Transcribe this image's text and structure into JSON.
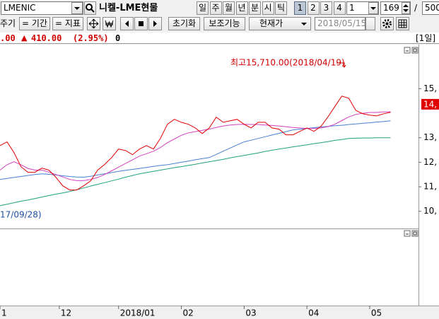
{
  "toolbar": {
    "symbol": "LMENIC",
    "name": "니켈-LME현물",
    "periods": [
      "일",
      "주",
      "월",
      "년",
      "분",
      "시",
      "틱"
    ],
    "slots": [
      "1",
      "2",
      "3",
      "4"
    ],
    "interval": "1",
    "count": "169",
    "separator": "/",
    "total": "500"
  },
  "toolbar2": {
    "cycle": "주기",
    "period": "= 기간",
    "indicator": "= 지표",
    "reset": "초기화",
    "aux": "보조기능",
    "price_mode": "현재가",
    "date": "2018/05/15"
  },
  "info": {
    "price": ".00",
    "change_sign": "▲",
    "change": "410.00",
    "change_pct": "(2.95%)",
    "volume": "0",
    "period_label": "[1일]"
  },
  "chart_data": {
    "type": "line",
    "xlim": [
      0,
      60
    ],
    "ylim": [
      9300,
      16800
    ],
    "yticks": [
      {
        "value": 10000,
        "label": "10,"
      },
      {
        "value": 11000,
        "label": "11,"
      },
      {
        "value": 12000,
        "label": "12,"
      },
      {
        "value": 13000,
        "label": "13,"
      },
      {
        "value": 15000,
        "label": "15,"
      }
    ],
    "current_price": {
      "value": 14380,
      "label": "14,"
    },
    "xticks": [
      {
        "value": 0,
        "label": "1"
      },
      {
        "value": 8.5,
        "label": "12"
      },
      {
        "value": 17,
        "label": "2018/01"
      },
      {
        "value": 26,
        "label": "02"
      },
      {
        "value": 35,
        "label": "03"
      },
      {
        "value": 44,
        "label": "04"
      },
      {
        "value": 53,
        "label": "05"
      }
    ],
    "annotations": [
      "최고15,710.00(2018/04/19)",
      "17/09/28)"
    ],
    "series": [
      {
        "color": "#e00000",
        "values": [
          12680,
          12830,
          12400,
          11820,
          11590,
          11590,
          11760,
          11680,
          11390,
          11040,
          10870,
          10870,
          11040,
          11240,
          11680,
          11910,
          12190,
          12540,
          12480,
          12310,
          12540,
          12680,
          12540,
          12970,
          13550,
          13750,
          13630,
          13550,
          13400,
          13170,
          13400,
          13840,
          13630,
          13690,
          13750,
          13550,
          13400,
          13630,
          13630,
          13400,
          13350,
          13120,
          13120,
          13260,
          13400,
          13260,
          13460,
          13840,
          14270,
          14700,
          14610,
          14120,
          13980,
          13920,
          13890,
          13980,
          14040
        ]
      },
      {
        "color": "#d040c0",
        "values": [
          11680,
          11900,
          12020,
          11900,
          11750,
          11680,
          11680,
          11600,
          11500,
          11400,
          11300,
          11250,
          11250,
          11300,
          11380,
          11500,
          11650,
          11800,
          11950,
          12100,
          12250,
          12350,
          12450,
          12600,
          12800,
          12950,
          13100,
          13200,
          13250,
          13300,
          13350,
          13420,
          13480,
          13520,
          13540,
          13550,
          13540,
          13540,
          13520,
          13500,
          13480,
          13450,
          13420,
          13400,
          13380,
          13380,
          13400,
          13450,
          13550,
          13700,
          13850,
          13950,
          14000,
          14030,
          14030,
          14050,
          14060
        ]
      },
      {
        "color": "#4a7fd0",
        "values": [
          11300,
          11340,
          11380,
          11420,
          11460,
          11500,
          11530,
          11510,
          11480,
          11450,
          11420,
          11400,
          11390,
          11430,
          11480,
          11530,
          11580,
          11630,
          11670,
          11710,
          11750,
          11790,
          11830,
          11870,
          11900,
          11950,
          12000,
          12050,
          12100,
          12150,
          12190,
          12320,
          12450,
          12580,
          12710,
          12830,
          12900,
          12970,
          13040,
          13110,
          13180,
          13250,
          13320,
          13350,
          13380,
          13410,
          13440,
          13460,
          13490,
          13510,
          13540,
          13560,
          13590,
          13610,
          13640,
          13660,
          13690
        ]
      },
      {
        "color": "#20a080",
        "values": [
          10230,
          10290,
          10350,
          10410,
          10460,
          10520,
          10580,
          10640,
          10700,
          10750,
          10810,
          10880,
          10950,
          11030,
          11100,
          11170,
          11240,
          11310,
          11390,
          11460,
          11530,
          11580,
          11630,
          11680,
          11730,
          11780,
          11820,
          11870,
          11920,
          11970,
          12020,
          12070,
          12120,
          12180,
          12230,
          12280,
          12330,
          12380,
          12440,
          12490,
          12540,
          12580,
          12630,
          12670,
          12710,
          12760,
          12800,
          12840,
          12890,
          12930,
          12970,
          12980,
          12990,
          12990,
          13000,
          13000,
          13000
        ]
      }
    ]
  }
}
